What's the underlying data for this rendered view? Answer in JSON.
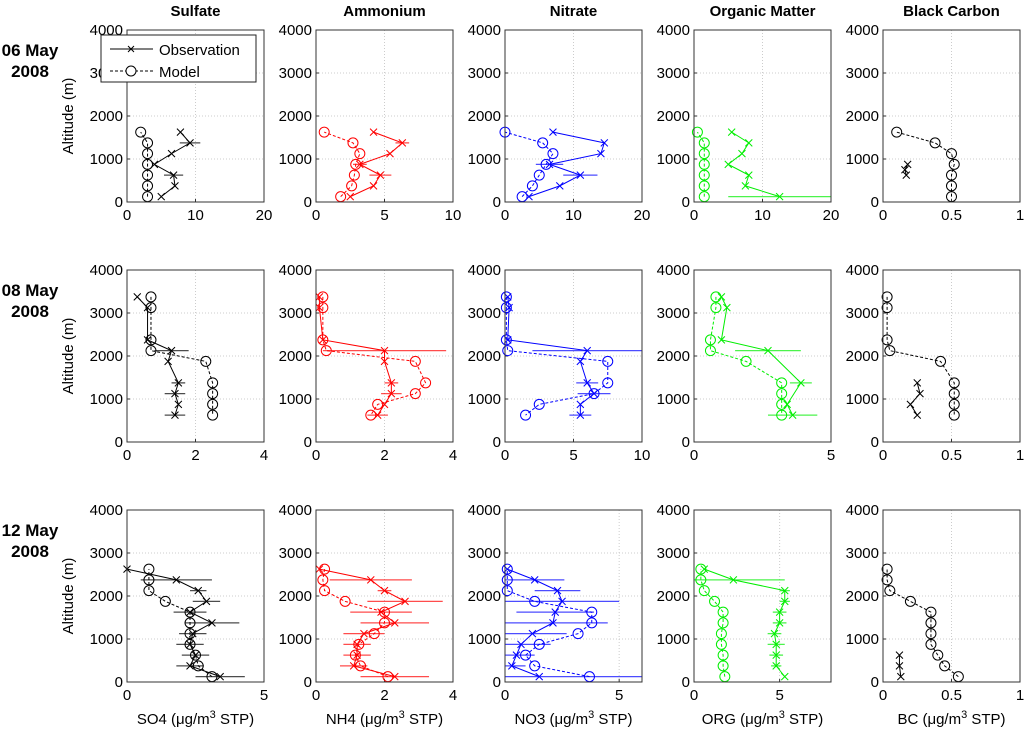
{
  "chart_data": {
    "type": "line",
    "column_titles": [
      "Sulfate",
      "Ammonium",
      "Nitrate",
      "Organic Matter",
      "Black Carbon"
    ],
    "row_labels": [
      [
        "06 May",
        "2008"
      ],
      [
        "08 May",
        "2008"
      ],
      [
        "12 May",
        "2008"
      ]
    ],
    "ylabel": "Altitude (m)",
    "ylim": [
      0,
      4000
    ],
    "yticks": [
      0,
      1000,
      2000,
      3000,
      4000
    ],
    "xlabels": [
      {
        "pre": "SO4 (μg/m",
        "sup": "3",
        "post": " STP)"
      },
      {
        "pre": "NH4 (μg/m",
        "sup": "3",
        "post": " STP)"
      },
      {
        "pre": "NO3 (μg/m",
        "sup": "3",
        "post": " STP)"
      },
      {
        "pre": "ORG (μg/m",
        "sup": "3",
        "post": " STP)"
      },
      {
        "pre": "BC (μg/m",
        "sup": "3",
        "post": " STP)"
      }
    ],
    "legend": {
      "position": "top-left",
      "entries": [
        "Observation",
        "Model"
      ]
    },
    "grid": true,
    "colors": [
      "#000000",
      "#ff0000",
      "#0000ff",
      "#00ee00",
      "#000000"
    ],
    "panels": [
      [
        {
          "xlim": [
            0,
            20
          ],
          "xticks": [
            0,
            10,
            20
          ],
          "obs": {
            "y": [
              125,
              375,
              625,
              875,
              1125,
              1375,
              1625
            ],
            "x": [
              5,
              7,
              6.8,
              4,
              6.5,
              9.2,
              7.8
            ],
            "xerr": [
              0,
              0,
              1.4,
              0,
              0,
              1.5,
              0
            ]
          },
          "model": {
            "y": [
              125,
              375,
              625,
              875,
              1125,
              1375,
              1625
            ],
            "x": [
              3,
              3,
              3,
              3,
              3,
              3,
              2
            ]
          }
        },
        {
          "xlim": [
            0,
            10
          ],
          "xticks": [
            0,
            5,
            10
          ],
          "obs": {
            "y": [
              125,
              375,
              625,
              875,
              1125,
              1375,
              1625
            ],
            "x": [
              2.5,
              4.2,
              4.7,
              3.2,
              5.4,
              6.3,
              4.2
            ],
            "xerr": [
              0,
              0,
              0.8,
              0.5,
              0,
              0.5,
              0
            ]
          },
          "model": {
            "y": [
              125,
              375,
              625,
              875,
              1125,
              1375,
              1625
            ],
            "x": [
              1.8,
              2.6,
              2.8,
              2.9,
              3.2,
              2.7,
              0.6
            ]
          }
        },
        {
          "xlim": [
            0,
            20
          ],
          "xticks": [
            0,
            10,
            20
          ],
          "obs": {
            "y": [
              125,
              375,
              625,
              875,
              1125,
              1375,
              1625
            ],
            "x": [
              3.5,
              8,
              11,
              6.5,
              14,
              14.5,
              7
            ],
            "xerr": [
              0,
              0,
              2.5,
              2,
              0,
              0,
              0
            ]
          },
          "model": {
            "y": [
              125,
              375,
              625,
              875,
              1125,
              1375,
              1625
            ],
            "x": [
              2.5,
              4,
              5,
              6,
              7,
              5.5,
              0
            ]
          }
        },
        {
          "xlim": [
            0,
            20
          ],
          "xticks": [
            0,
            10,
            20
          ],
          "obs": {
            "y": [
              125,
              375,
              625,
              875,
              1125,
              1375,
              1625
            ],
            "x": [
              12.5,
              7.5,
              8,
              5,
              7,
              8,
              5.5
            ],
            "xerr": [
              7.5,
              0,
              0,
              0,
              0,
              0,
              0
            ]
          },
          "model": {
            "y": [
              125,
              375,
              625,
              875,
              1125,
              1375,
              1625
            ],
            "x": [
              1.5,
              1.5,
              1.5,
              1.5,
              1.5,
              1.5,
              0.5
            ]
          }
        },
        {
          "xlim": [
            0,
            1
          ],
          "xticks": [
            0,
            0.5,
            1
          ],
          "obs": {
            "y": [
              625,
              750,
              875
            ],
            "x": [
              0.17,
              0.16,
              0.18
            ],
            "xerr": [
              0,
              0,
              0
            ]
          },
          "model": {
            "y": [
              125,
              375,
              625,
              875,
              1125,
              1375,
              1625
            ],
            "x": [
              0.5,
              0.5,
              0.5,
              0.52,
              0.5,
              0.38,
              0.1
            ]
          }
        }
      ],
      [
        {
          "xlim": [
            0,
            4
          ],
          "xticks": [
            0,
            2,
            4
          ],
          "obs": {
            "y": [
              3375,
              3125,
              2375,
              2125,
              1875,
              1375,
              1125,
              875,
              625
            ],
            "x": [
              0.3,
              0.6,
              0.6,
              1.3,
              1.2,
              1.5,
              1.4,
              1.5,
              1.4
            ],
            "xerr": [
              0,
              0,
              0,
              0.5,
              0,
              0.2,
              0.3,
              0,
              0.3
            ]
          },
          "model": {
            "y": [
              3375,
              3125,
              2375,
              2125,
              1875,
              1375,
              1125,
              875,
              625
            ],
            "x": [
              0.7,
              0.7,
              0.7,
              0.7,
              2.3,
              2.5,
              2.5,
              2.5,
              2.5
            ]
          }
        },
        {
          "xlim": [
            0,
            4
          ],
          "xticks": [
            0,
            2,
            4
          ],
          "obs": {
            "y": [
              3375,
              3125,
              2375,
              2125,
              1875,
              1375,
              1125,
              875,
              625
            ],
            "x": [
              0.1,
              0.1,
              0.2,
              2,
              2,
              2.2,
              2.2,
              2,
              1.8
            ],
            "xerr": [
              0,
              0,
              0,
              1.8,
              0,
              0.2,
              0.3,
              0,
              0.3
            ]
          },
          "model": {
            "y": [
              3375,
              3125,
              2375,
              2125,
              1875,
              1375,
              1125,
              875,
              625
            ],
            "x": [
              0.2,
              0.2,
              0.2,
              0.3,
              2.9,
              3.2,
              2.9,
              1.8,
              1.6
            ]
          }
        },
        {
          "xlim": [
            0,
            10
          ],
          "xticks": [
            0,
            5,
            10
          ],
          "obs": {
            "y": [
              3375,
              3125,
              2375,
              2125,
              1875,
              1375,
              1125,
              875,
              625
            ],
            "x": [
              0.2,
              0.3,
              0.2,
              6,
              5.5,
              6,
              6.5,
              5.5,
              5.5
            ],
            "xerr": [
              0,
              0,
              0,
              4,
              0,
              0.8,
              1.2,
              0,
              0.8
            ]
          },
          "model": {
            "y": [
              3375,
              3125,
              2375,
              2125,
              1875,
              1375,
              1125,
              875,
              625
            ],
            "x": [
              0.1,
              0.1,
              0.1,
              0.2,
              7.5,
              7.5,
              6.5,
              2.5,
              1.5
            ]
          }
        },
        {
          "xlim": [
            0,
            5
          ],
          "xticks": [
            0,
            5
          ],
          "obs": {
            "y": [
              3375,
              3125,
              2375,
              2125,
              1375,
              875,
              625
            ],
            "x": [
              1,
              1.2,
              1,
              2.7,
              3.9,
              3.4,
              3.6
            ],
            "xerr": [
              0,
              0,
              0,
              1.2,
              0.4,
              0,
              0.9
            ]
          },
          "model": {
            "y": [
              3375,
              3125,
              2375,
              2125,
              1875,
              1375,
              1125,
              875,
              625
            ],
            "x": [
              0.8,
              0.8,
              0.6,
              0.6,
              1.9,
              3.2,
              3.2,
              3.2,
              3.2
            ]
          }
        },
        {
          "xlim": [
            0,
            1
          ],
          "xticks": [
            0,
            0.5,
            1
          ],
          "obs": {
            "y": [
              1375,
              1125,
              875,
              625
            ],
            "x": [
              0.25,
              0.27,
              0.2,
              0.25
            ],
            "xerr": [
              0,
              0,
              0,
              0
            ]
          },
          "model": {
            "y": [
              3375,
              3125,
              2375,
              2125,
              1875,
              1375,
              1125,
              875,
              625
            ],
            "x": [
              0.03,
              0.03,
              0.03,
              0.05,
              0.42,
              0.52,
              0.52,
              0.52,
              0.52
            ]
          }
        }
      ],
      [
        {
          "xlim": [
            0,
            5
          ],
          "xticks": [
            0,
            5
          ],
          "obs": {
            "y": [
              125,
              375,
              625,
              875,
              1125,
              1375,
              1625,
              1875,
              2125,
              2375,
              2625
            ],
            "x": [
              3.4,
              2.3,
              2.5,
              2.3,
              2.4,
              3.1,
              2.3,
              2.9,
              2.6,
              1.8,
              0
            ],
            "xerr": [
              0.9,
              0.5,
              0.5,
              0.5,
              0.5,
              1,
              0.6,
              0.5,
              0.3,
              1.3,
              0
            ]
          },
          "model": {
            "y": [
              125,
              375,
              625,
              875,
              1125,
              1375,
              1625,
              1875,
              2125,
              2375,
              2625
            ],
            "x": [
              3.1,
              2.6,
              2.5,
              2.3,
              2.3,
              2.3,
              2.3,
              1.4,
              0.8,
              0.8,
              0.8
            ]
          }
        },
        {
          "xlim": [
            0,
            4
          ],
          "xticks": [
            0,
            2,
            4
          ],
          "obs": {
            "y": [
              125,
              375,
              625,
              875,
              1125,
              1375,
              1625,
              1875,
              2125,
              2375,
              2625
            ],
            "x": [
              2.3,
              1.1,
              1.2,
              1.2,
              1.4,
              2.3,
              1.9,
              2.6,
              2,
              1.6,
              0.1
            ],
            "xerr": [
              1,
              0.4,
              0.4,
              0.4,
              0.6,
              1,
              0.9,
              1.1,
              0.2,
              1.2,
              0
            ]
          },
          "model": {
            "y": [
              125,
              375,
              625,
              875,
              1125,
              1375,
              1625,
              1875,
              2125,
              2375,
              2625
            ],
            "x": [
              2.1,
              1.3,
              1.15,
              1.25,
              1.7,
              2,
              2,
              0.85,
              0.25,
              0.2,
              0.25
            ]
          }
        },
        {
          "xlim": [
            0,
            6
          ],
          "xticks": [
            0,
            5
          ],
          "obs": {
            "y": [
              125,
              375,
              625,
              875,
              1125,
              1375,
              1625,
              1875,
              2125,
              2375,
              2625
            ],
            "x": [
              1.5,
              0.3,
              0.5,
              0.7,
              1.2,
              2.1,
              2.2,
              2.5,
              2.3,
              1.3,
              0.1
            ],
            "xerr": [
              4.5,
              0.6,
              0.8,
              1.3,
              1.5,
              2.4,
              1.7,
              2.5,
              1,
              1.3,
              0
            ]
          },
          "model": {
            "y": [
              125,
              375,
              625,
              875,
              1125,
              1375,
              1625,
              1875,
              2125,
              2375,
              2625
            ],
            "x": [
              3.7,
              1.3,
              0.9,
              1.5,
              3.2,
              3.8,
              3.8,
              1.3,
              0.1,
              0.1,
              0.1
            ]
          }
        },
        {
          "xlim": [
            0,
            8
          ],
          "xticks": [
            0,
            5
          ],
          "obs": {
            "y": [
              125,
              375,
              625,
              875,
              1125,
              1375,
              1625,
              1875,
              2125,
              2375,
              2625
            ],
            "x": [
              5.3,
              4.8,
              4.8,
              4.8,
              4.7,
              5,
              5,
              5.3,
              5.3,
              2.3,
              0.6
            ],
            "xerr": [
              0,
              0.3,
              0.4,
              0.5,
              0.4,
              0.4,
              0.4,
              0.3,
              0.3,
              3,
              0
            ]
          },
          "model": {
            "y": [
              125,
              375,
              625,
              875,
              1125,
              1375,
              1625,
              1875,
              2125,
              2375,
              2625
            ],
            "x": [
              1.8,
              1.7,
              1.7,
              1.6,
              1.6,
              1.7,
              1.7,
              1.2,
              0.6,
              0.4,
              0.4
            ]
          }
        },
        {
          "xlim": [
            0,
            1
          ],
          "xticks": [
            0,
            0.5,
            1
          ],
          "obs": {
            "y": [
              125,
              375,
              625
            ],
            "x": [
              0.13,
              0.12,
              0.12
            ],
            "xerr": [
              0,
              0,
              0
            ]
          },
          "model": {
            "y": [
              125,
              375,
              625,
              875,
              1125,
              1375,
              1625,
              1875,
              2125,
              2375,
              2625
            ],
            "x": [
              0.55,
              0.45,
              0.4,
              0.35,
              0.35,
              0.35,
              0.35,
              0.2,
              0.05,
              0.03,
              0.03
            ]
          }
        }
      ]
    ]
  }
}
